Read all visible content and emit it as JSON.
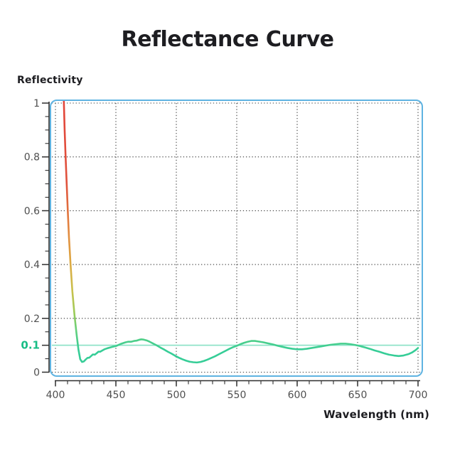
{
  "title": "Reflectance Curve",
  "axis": {
    "y_label": "Reflectivity",
    "x_label": "Wavelength (nm)"
  },
  "style": {
    "background": "#ffffff",
    "frame_color": "#5fb3e1",
    "axis_color": "#2e2e2e",
    "grid_color": "#3c3c3c",
    "tick_label_color": "#4f4f4f",
    "title_color": "#1d1d21",
    "threshold_line_color": "#8fe3c8",
    "threshold_label_color": "#17bd85",
    "curve_base_color": "#36cd97",
    "curve_gradient_stops": [
      [
        0,
        "#e2453a"
      ],
      [
        0.3,
        "#e0533d"
      ],
      [
        0.48,
        "#e28a40"
      ],
      [
        0.6,
        "#dcab43"
      ],
      [
        0.7,
        "#c8c14d"
      ],
      [
        0.78,
        "#9ccb58"
      ],
      [
        0.85,
        "#60d07e"
      ],
      [
        0.92,
        "#36cd97"
      ],
      [
        1,
        "#36cd97"
      ]
    ]
  },
  "chart_data": {
    "type": "line",
    "title": "Reflectance Curve",
    "xlabel": "Wavelength (nm)",
    "ylabel": "Reflectivity",
    "xlim": [
      400,
      700
    ],
    "ylim": [
      0,
      1
    ],
    "x_ticks": [
      400,
      450,
      500,
      550,
      600,
      650,
      700
    ],
    "x_tick_labels": [
      "400",
      "450",
      "500",
      "550",
      "600",
      "650",
      "700"
    ],
    "x_minor_tick_step": 10,
    "y_ticks": [
      0,
      0.1,
      0.2,
      0.4,
      0.6,
      0.8,
      1
    ],
    "y_tick_labels": [
      "0",
      "0.1",
      "0.2",
      "0.4",
      "0.6",
      "0.8",
      "1"
    ],
    "y_minor_tick_step": 0.05,
    "grid": "dotted",
    "grid_x_values": [
      400,
      450,
      500,
      550,
      600,
      650,
      700
    ],
    "grid_y_values": [
      0,
      0.2,
      0.4,
      0.6,
      0.8,
      1
    ],
    "legend": "none",
    "reference_line": {
      "y": 0.1,
      "label": "0.1"
    },
    "series": [
      {
        "name": "reflectance",
        "color_mode": "gradient-by-reflectivity",
        "points": [
          [
            406.8,
            1.03
          ],
          [
            407.6,
            0.9
          ],
          [
            408.4,
            0.8
          ],
          [
            409.3,
            0.7
          ],
          [
            410.2,
            0.6
          ],
          [
            411.2,
            0.5
          ],
          [
            412.5,
            0.4
          ],
          [
            414.0,
            0.3
          ],
          [
            415.8,
            0.21
          ],
          [
            417.5,
            0.14
          ],
          [
            419.0,
            0.085
          ],
          [
            420.5,
            0.048
          ],
          [
            422.0,
            0.038
          ],
          [
            423.5,
            0.04
          ],
          [
            425.0,
            0.047
          ],
          [
            426.5,
            0.053
          ],
          [
            428.0,
            0.054
          ],
          [
            429.5,
            0.06
          ],
          [
            431.0,
            0.066
          ],
          [
            432.5,
            0.065
          ],
          [
            434.0,
            0.07
          ],
          [
            435.5,
            0.076
          ],
          [
            437.0,
            0.076
          ],
          [
            438.5,
            0.08
          ],
          [
            440.5,
            0.085
          ],
          [
            443.0,
            0.089
          ],
          [
            445.5,
            0.092
          ],
          [
            448.0,
            0.095
          ],
          [
            450.0,
            0.097
          ],
          [
            452.0,
            0.101
          ],
          [
            454.0,
            0.105
          ],
          [
            456.0,
            0.108
          ],
          [
            458.0,
            0.111
          ],
          [
            460.0,
            0.113
          ],
          [
            462.5,
            0.113
          ],
          [
            465.0,
            0.116
          ],
          [
            467.0,
            0.117
          ],
          [
            469.0,
            0.12
          ],
          [
            471.0,
            0.122
          ],
          [
            473.0,
            0.121
          ],
          [
            475.5,
            0.118
          ],
          [
            478.0,
            0.113
          ],
          [
            481.0,
            0.106
          ],
          [
            484.0,
            0.099
          ],
          [
            487.0,
            0.091
          ],
          [
            490.0,
            0.084
          ],
          [
            493.0,
            0.076
          ],
          [
            496.0,
            0.069
          ],
          [
            499.0,
            0.061
          ],
          [
            502.0,
            0.054
          ],
          [
            505.0,
            0.048
          ],
          [
            508.0,
            0.043
          ],
          [
            511.0,
            0.039
          ],
          [
            514.0,
            0.037
          ],
          [
            517.0,
            0.036
          ],
          [
            520.0,
            0.038
          ],
          [
            523.0,
            0.042
          ],
          [
            526.0,
            0.047
          ],
          [
            529.0,
            0.053
          ],
          [
            532.0,
            0.059
          ],
          [
            535.0,
            0.066
          ],
          [
            538.0,
            0.073
          ],
          [
            541.0,
            0.08
          ],
          [
            544.0,
            0.087
          ],
          [
            547.0,
            0.093
          ],
          [
            550.0,
            0.098
          ],
          [
            553.0,
            0.104
          ],
          [
            556.0,
            0.109
          ],
          [
            559.0,
            0.113
          ],
          [
            562.0,
            0.116
          ],
          [
            565.0,
            0.116
          ],
          [
            568.0,
            0.114
          ],
          [
            572.0,
            0.111
          ],
          [
            576.0,
            0.107
          ],
          [
            580.0,
            0.103
          ],
          [
            584.0,
            0.098
          ],
          [
            588.0,
            0.094
          ],
          [
            592.0,
            0.09
          ],
          [
            596.0,
            0.087
          ],
          [
            600.0,
            0.085
          ],
          [
            604.0,
            0.085
          ],
          [
            608.0,
            0.087
          ],
          [
            612.0,
            0.09
          ],
          [
            616.0,
            0.093
          ],
          [
            620.0,
            0.096
          ],
          [
            624.0,
            0.099
          ],
          [
            628.0,
            0.102
          ],
          [
            632.0,
            0.104
          ],
          [
            636.0,
            0.106
          ],
          [
            640.0,
            0.106
          ],
          [
            644.0,
            0.104
          ],
          [
            648.0,
            0.101
          ],
          [
            652.0,
            0.097
          ],
          [
            656.0,
            0.092
          ],
          [
            660.0,
            0.087
          ],
          [
            664.0,
            0.081
          ],
          [
            668.0,
            0.076
          ],
          [
            672.0,
            0.07
          ],
          [
            676.0,
            0.065
          ],
          [
            680.0,
            0.062
          ],
          [
            684.0,
            0.06
          ],
          [
            688.0,
            0.062
          ],
          [
            692.0,
            0.067
          ],
          [
            695.0,
            0.073
          ],
          [
            698.0,
            0.082
          ],
          [
            700.0,
            0.09
          ]
        ]
      }
    ]
  }
}
